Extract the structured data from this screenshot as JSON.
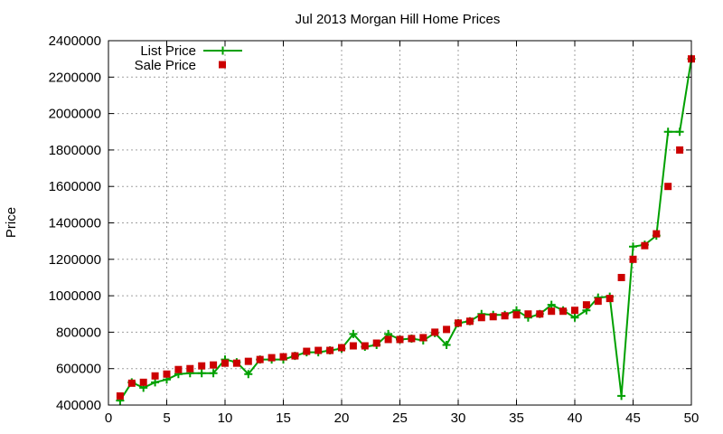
{
  "chart_data": {
    "type": "line",
    "title": "Jul 2013 Morgan Hill Home Prices",
    "xlabel": "",
    "ylabel": "Price",
    "xlim": [
      0,
      50
    ],
    "ylim": [
      400000,
      2400000
    ],
    "xticks": [
      0,
      5,
      10,
      15,
      20,
      25,
      30,
      35,
      40,
      45,
      50
    ],
    "yticks": [
      400000,
      600000,
      800000,
      1000000,
      1200000,
      1400000,
      1600000,
      1800000,
      2000000,
      2200000,
      2400000
    ],
    "grid": true,
    "legend_position": "top-left",
    "series": [
      {
        "name": "List Price",
        "style": "line-with-plus-markers",
        "color": "#00a000",
        "x": [
          1,
          2,
          3,
          4,
          5,
          6,
          7,
          8,
          9,
          10,
          11,
          12,
          13,
          14,
          15,
          16,
          17,
          18,
          19,
          20,
          21,
          22,
          23,
          24,
          25,
          26,
          27,
          28,
          29,
          30,
          31,
          32,
          33,
          34,
          35,
          36,
          37,
          38,
          39,
          40,
          41,
          42,
          43,
          44,
          45,
          46,
          47,
          48,
          49,
          50
        ],
        "y": [
          425000,
          525000,
          495000,
          525000,
          540000,
          570000,
          575000,
          575000,
          575000,
          650000,
          635000,
          570000,
          650000,
          650000,
          650000,
          670000,
          690000,
          690000,
          700000,
          710000,
          790000,
          720000,
          730000,
          790000,
          760000,
          765000,
          755000,
          795000,
          730000,
          850000,
          860000,
          900000,
          895000,
          895000,
          920000,
          880000,
          900000,
          950000,
          920000,
          880000,
          920000,
          990000,
          995000,
          450000,
          1270000,
          1280000,
          1330000,
          1900000,
          1900000,
          2300000
        ]
      },
      {
        "name": "Sale Price",
        "style": "square-markers",
        "color": "#cc0000",
        "x": [
          1,
          2,
          3,
          4,
          5,
          6,
          7,
          8,
          9,
          10,
          11,
          12,
          13,
          14,
          15,
          16,
          17,
          18,
          19,
          20,
          21,
          22,
          23,
          24,
          25,
          26,
          27,
          28,
          29,
          30,
          31,
          32,
          33,
          34,
          35,
          36,
          37,
          38,
          39,
          40,
          41,
          42,
          43,
          44,
          45,
          46,
          47,
          48,
          49,
          50
        ],
        "y": [
          450000,
          520000,
          525000,
          560000,
          570000,
          595000,
          600000,
          615000,
          620000,
          630000,
          630000,
          640000,
          650000,
          660000,
          665000,
          670000,
          695000,
          700000,
          700000,
          715000,
          725000,
          725000,
          740000,
          760000,
          760000,
          765000,
          770000,
          800000,
          815000,
          850000,
          860000,
          880000,
          885000,
          890000,
          895000,
          900000,
          900000,
          915000,
          915000,
          920000,
          950000,
          970000,
          985000,
          1100000,
          1200000,
          1275000,
          1340000,
          1600000,
          1800000,
          2300000
        ]
      }
    ]
  }
}
